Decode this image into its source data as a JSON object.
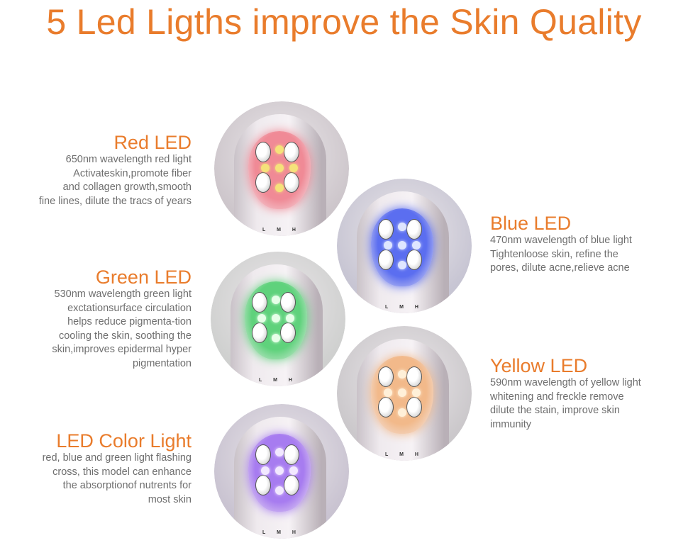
{
  "title": "5 Led Ligths improve the Skin Quality",
  "leds": [
    {
      "name": "Red LED",
      "desc": "650nm wavelength red light\nActivateskin,promote fiber\nand collagen growth,smooth\nfine lines, dilute the tracs of years",
      "glow": "#f08a96",
      "dot": "#f5e27a",
      "bg": "#cdc6cb"
    },
    {
      "name": "Blue LED",
      "desc": "470nm wavelength of blue light\nTightenloose skin, refine the\npores, dilute acne,relieve acne",
      "glow": "#5b6ef0",
      "dot": "#dfe6ff",
      "bg": "#c7c5d3"
    },
    {
      "name": "Green LED",
      "desc": "530nm wavelength green light\nexctationsurface circulation\nhelps reduce pigmenta-tion\ncooling the skin, soothing the\nskin,improves epidermal hyper\npigmentation",
      "glow": "#5fd27c",
      "dot": "#e6ffe8",
      "bg": "#cfd0cf"
    },
    {
      "name": "Yellow LED",
      "desc": "590nm wavelength of yellow light\nwhitening and freckle remove\ndilute the stain, improve skin\nimmunity",
      "glow": "#f2b98a",
      "dot": "#fff0d8",
      "bg": "#cbc8cb"
    },
    {
      "name": "LED Color Light",
      "desc": "red, blue and green light flashing\ncross, this model can enhance\nthe absorptionof nutrents for\nmost skin",
      "glow": "#a77cf0",
      "dot": "#f2e8ff",
      "bg": "#c9c3d1"
    }
  ],
  "device_label": "L M H"
}
